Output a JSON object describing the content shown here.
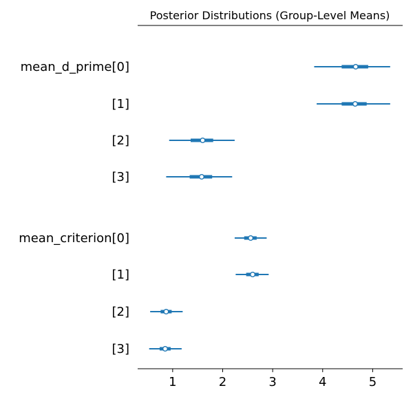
{
  "chart_data": {
    "type": "forest",
    "title": "Posterior Distributions (Group-Level Means)",
    "xlim": [
      0.3,
      5.6
    ],
    "x_ticks": [
      "1",
      "2",
      "3",
      "4",
      "5"
    ],
    "x_tick_values": [
      1,
      2,
      3,
      4,
      5
    ],
    "grid": false,
    "color": "#1f77b4",
    "rows": [
      {
        "label": "mean_d_prime[0]",
        "mean": 4.66,
        "hdi_94": [
          3.83,
          5.35
        ],
        "iqr": [
          4.38,
          4.91
        ]
      },
      {
        "label": "[1]",
        "mean": 4.65,
        "hdi_94": [
          3.88,
          5.35
        ],
        "iqr": [
          4.38,
          4.88
        ]
      },
      {
        "label": "[2]",
        "mean": 1.6,
        "hdi_94": [
          0.93,
          2.24
        ],
        "iqr": [
          1.36,
          1.81
        ]
      },
      {
        "label": "[3]",
        "mean": 1.58,
        "hdi_94": [
          0.87,
          2.19
        ],
        "iqr": [
          1.34,
          1.79
        ]
      },
      {
        "label": "mean_criterion[0]",
        "mean": 2.56,
        "hdi_94": [
          2.24,
          2.88
        ],
        "iqr": [
          2.43,
          2.68
        ]
      },
      {
        "label": "[1]",
        "mean": 2.6,
        "hdi_94": [
          2.26,
          2.92
        ],
        "iqr": [
          2.47,
          2.72
        ]
      },
      {
        "label": "[2]",
        "mean": 0.87,
        "hdi_94": [
          0.55,
          1.2
        ],
        "iqr": [
          0.76,
          0.98
        ]
      },
      {
        "label": "[3]",
        "mean": 0.85,
        "hdi_94": [
          0.53,
          1.18
        ],
        "iqr": [
          0.74,
          0.96
        ]
      }
    ]
  }
}
